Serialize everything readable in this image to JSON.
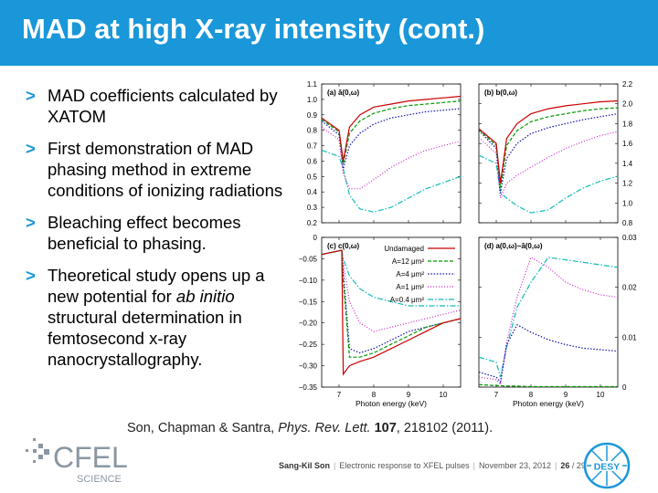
{
  "title": "MAD at high X-ray intensity (cont.)",
  "bullets": [
    {
      "marker": ">",
      "parts": [
        {
          "text": "MAD coefficients calculated by XATOM",
          "italic": false
        }
      ]
    },
    {
      "marker": ">",
      "parts": [
        {
          "text": "First demonstration of MAD phasing method in extreme conditions of ionizing radiations",
          "italic": false
        }
      ]
    },
    {
      "marker": ">",
      "parts": [
        {
          "text": "Bleaching effect becomes beneficial to phasing.",
          "italic": false
        }
      ]
    },
    {
      "marker": ">",
      "parts": [
        {
          "text": "Theoretical study opens up a new potential for ",
          "italic": false
        },
        {
          "text": "ab initio",
          "italic": true
        },
        {
          "text": " structural determination in femtosecond x-ray nanocrystallography.",
          "italic": false
        }
      ]
    }
  ],
  "citation": {
    "authors": "Son, Chapman & Santra, ",
    "journal": "Phys. Rev. Lett.",
    "volume": "107",
    "rest": ", 218102 (2011)."
  },
  "footer": {
    "author": "Sang-Kil Son",
    "talk": "Electronic response to XFEL pulses",
    "date": "November 23, 2012",
    "page": "26",
    "total": "29"
  },
  "logos": {
    "cfel_text": "CFEL",
    "cfel_sub": "SCIENCE",
    "desy_text": "DESY"
  },
  "colors": {
    "header": "#1a97d9",
    "red": "#cc0000",
    "green": "#009900",
    "blue": "#1111aa",
    "magenta": "#cc22cc",
    "cyan": "#11bbbb"
  },
  "chart_data": [
    {
      "type": "line",
      "panel_label": "(a) ā(0,ω)",
      "x": [
        6.5,
        7.0,
        7.12,
        7.3,
        7.6,
        8.0,
        8.5,
        9.0,
        9.5,
        10.0,
        10.5
      ],
      "xlim": [
        6.5,
        10.5
      ],
      "ylim": [
        0.2,
        1.1
      ],
      "yticks": [
        "0.2",
        "0.3",
        "0.4",
        "0.5",
        "0.6",
        "0.7",
        "0.8",
        "0.9",
        "1.0",
        "1.1"
      ],
      "series": [
        {
          "name": "Undamaged",
          "values": [
            0.88,
            0.8,
            0.6,
            0.82,
            0.9,
            0.95,
            0.97,
            0.99,
            1.0,
            1.01,
            1.02
          ]
        },
        {
          "name": "A=12 μm²",
          "values": [
            0.87,
            0.79,
            0.58,
            0.78,
            0.86,
            0.91,
            0.94,
            0.96,
            0.97,
            0.98,
            0.99
          ]
        },
        {
          "name": "A=4 μm²",
          "values": [
            0.86,
            0.77,
            0.55,
            0.7,
            0.78,
            0.84,
            0.88,
            0.9,
            0.92,
            0.93,
            0.94
          ]
        },
        {
          "name": "A=1 μm²",
          "values": [
            0.82,
            0.74,
            0.52,
            0.42,
            0.42,
            0.48,
            0.56,
            0.62,
            0.67,
            0.7,
            0.73
          ]
        },
        {
          "name": "A=0.4 μm²",
          "values": [
            0.67,
            0.63,
            0.55,
            0.38,
            0.29,
            0.27,
            0.3,
            0.36,
            0.42,
            0.46,
            0.5
          ]
        }
      ]
    },
    {
      "type": "line",
      "panel_label": "(b) b(0,ω)",
      "x": [
        6.5,
        7.0,
        7.12,
        7.3,
        7.6,
        8.0,
        8.5,
        9.0,
        9.5,
        10.0,
        10.5
      ],
      "xlim": [
        6.5,
        10.5
      ],
      "ylim": [
        0.8,
        2.2
      ],
      "yticks": [
        "0.8",
        "1.0",
        "1.2",
        "1.4",
        "1.6",
        "1.8",
        "2.0",
        "2.2"
      ],
      "series": [
        {
          "name": "Undamaged",
          "values": [
            1.75,
            1.6,
            1.2,
            1.65,
            1.8,
            1.9,
            1.95,
            1.98,
            2.0,
            2.02,
            2.03
          ]
        },
        {
          "name": "A=12 μm²",
          "values": [
            1.74,
            1.58,
            1.15,
            1.58,
            1.73,
            1.82,
            1.87,
            1.9,
            1.93,
            1.95,
            1.96
          ]
        },
        {
          "name": "A=4 μm²",
          "values": [
            1.73,
            1.55,
            1.1,
            1.45,
            1.6,
            1.7,
            1.76,
            1.8,
            1.84,
            1.87,
            1.9
          ]
        },
        {
          "name": "A=1 μm²",
          "values": [
            1.66,
            1.5,
            1.05,
            1.2,
            1.28,
            1.36,
            1.46,
            1.55,
            1.62,
            1.68,
            1.72
          ]
        },
        {
          "name": "A=0.4 μm²",
          "values": [
            1.48,
            1.4,
            1.1,
            1.05,
            0.97,
            0.9,
            0.93,
            1.05,
            1.15,
            1.22,
            1.27
          ]
        }
      ]
    },
    {
      "type": "line",
      "panel_label": "(c) c(0,ω)",
      "x": [
        6.5,
        7.08,
        7.12,
        7.3,
        7.6,
        8.0,
        8.5,
        9.0,
        9.5,
        10.0,
        10.5
      ],
      "xlim": [
        6.5,
        10.5
      ],
      "ylim": [
        -0.35,
        0
      ],
      "xticks": [
        "7",
        "8",
        "9",
        "10"
      ],
      "xlabel": "Photon energy (keV)",
      "yticks": [
        "−0.35",
        "−0.30",
        "−0.25",
        "−0.20",
        "−0.15",
        "−0.10",
        "−0.05",
        "0"
      ],
      "legend_position": "top-right",
      "series": [
        {
          "name": "Undamaged",
          "values": [
            -0.04,
            -0.03,
            -0.32,
            -0.3,
            -0.29,
            -0.28,
            -0.26,
            -0.24,
            -0.22,
            -0.2,
            -0.19
          ]
        },
        {
          "name": "A=12 μm²",
          "values": [
            -0.04,
            -0.03,
            -0.1,
            -0.28,
            -0.28,
            -0.27,
            -0.25,
            -0.23,
            -0.21,
            -0.2,
            -0.19
          ]
        },
        {
          "name": "A=4 μm²",
          "values": [
            -0.04,
            -0.03,
            -0.08,
            -0.26,
            -0.27,
            -0.26,
            -0.24,
            -0.22,
            -0.21,
            -0.2,
            -0.19
          ]
        },
        {
          "name": "A=1 μm²",
          "values": [
            -0.04,
            -0.03,
            -0.06,
            -0.15,
            -0.2,
            -0.22,
            -0.21,
            -0.2,
            -0.19,
            -0.18,
            -0.17
          ]
        },
        {
          "name": "A=0.4 μm²",
          "values": [
            -0.04,
            -0.03,
            -0.05,
            -0.09,
            -0.12,
            -0.14,
            -0.15,
            -0.16,
            -0.16,
            -0.16,
            -0.16
          ]
        }
      ]
    },
    {
      "type": "line",
      "panel_label": "(d) a(0,ω)−ā(0,ω)",
      "x": [
        6.5,
        7.0,
        7.12,
        7.3,
        7.6,
        8.0,
        8.5,
        9.0,
        9.5,
        10.0,
        10.5
      ],
      "xlim": [
        6.5,
        10.5
      ],
      "ylim": [
        0,
        0.03
      ],
      "xticks": [
        "7",
        "8",
        "9",
        "10"
      ],
      "xlabel": "Photon energy (keV)",
      "yticks": [
        "0",
        "0.01",
        "0.02",
        "0.03"
      ],
      "series": [
        {
          "name": "A=12 μm²",
          "values": [
            0.0005,
            0.0003,
            0.0003,
            0.0002,
            0.0002,
            0.0001,
            0.0001,
            0.0001,
            0.0001,
            0.0001,
            0.0001
          ]
        },
        {
          "name": "A=4 μm²",
          "values": [
            0.003,
            0.002,
            0.001,
            0.0085,
            0.0125,
            0.011,
            0.0095,
            0.0085,
            0.0078,
            0.0075,
            0.0072
          ]
        },
        {
          "name": "A=1 μm²",
          "values": [
            0.002,
            0.0015,
            0.0005,
            0.009,
            0.018,
            0.026,
            0.024,
            0.021,
            0.0195,
            0.0185,
            0.018
          ]
        },
        {
          "name": "A=0.4 μm²",
          "values": [
            0.006,
            0.005,
            0.002,
            0.008,
            0.016,
            0.021,
            0.026,
            0.0255,
            0.025,
            0.0245,
            0.024
          ]
        }
      ]
    }
  ]
}
